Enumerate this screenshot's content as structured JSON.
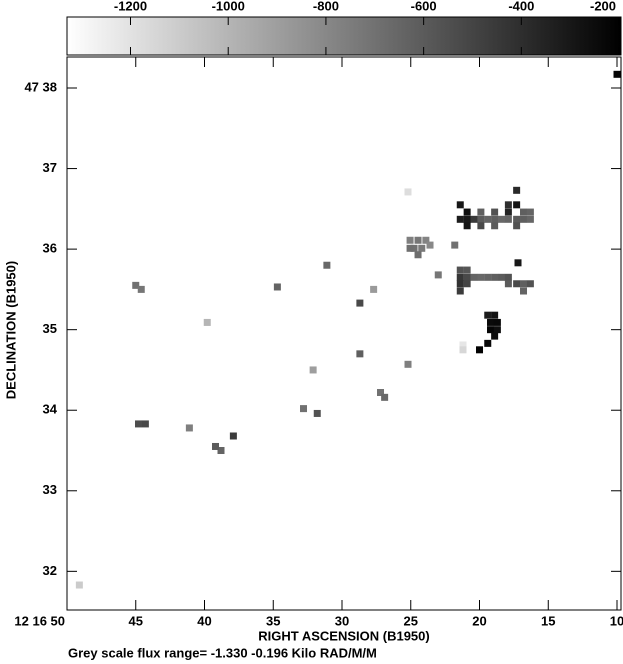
{
  "chart_data": {
    "type": "heatmap",
    "xlabel": "RIGHT ASCENSION (B1950)",
    "ylabel": "DECLINATION (B1950)",
    "caption": "Grey scale flux range= -1.330 -0.196 Kilo RAD/M/M",
    "xlim": [
      50,
      9.71
    ],
    "ylim": [
      31.52,
      38.385
    ],
    "xticks": [
      {
        "value": 50,
        "label": "12 16 50"
      },
      45,
      40,
      35,
      30,
      25,
      20,
      15,
      10
    ],
    "yticks": [
      32,
      33,
      34,
      35,
      36,
      37,
      {
        "value": 38,
        "label": "47 38"
      }
    ],
    "clim": [
      -1330,
      -196
    ],
    "cticks": [
      -1200,
      -1000,
      -800,
      -600,
      -400,
      -200
    ],
    "colormap": [
      "#ffffff",
      "#000000"
    ],
    "x": [
      10.0,
      25.2,
      25.05,
      24.47,
      23.9,
      24.76,
      24.2,
      23.6,
      25.05,
      24.47,
      21.4,
      20.9,
      21.4,
      20.9,
      20.4,
      19.9,
      19.4,
      18.9,
      18.4,
      17.9,
      17.3,
      16.8,
      16.3,
      19.9,
      18.9,
      17.9,
      17.3,
      17.9,
      17.3,
      16.8,
      20.9,
      19.9,
      18.9,
      17.3,
      16.3,
      21.8,
      23.0,
      17.2,
      21.4,
      20.9,
      21.4,
      20.9,
      20.4,
      19.9,
      19.4,
      18.9,
      18.4,
      17.9,
      17.3,
      16.8,
      16.3,
      21.4,
      20.9,
      17.9,
      16.8,
      21.4,
      19.4,
      18.9,
      19.2,
      18.7,
      19.2,
      18.7,
      18.9,
      19.4,
      20.0,
      21.2,
      21.2,
      45.0,
      44.6,
      39.8,
      41.1,
      44.3,
      44.8,
      38.8,
      39.2,
      37.9,
      34.7,
      31.1,
      28.7,
      27.7,
      28.7,
      32.1,
      32.8,
      31.8,
      27.2,
      26.9,
      25.2,
      49.1
    ],
    "y": [
      38.17,
      36.71,
      36.11,
      36.11,
      36.11,
      36.01,
      36.01,
      36.05,
      36.01,
      35.93,
      36.55,
      36.46,
      36.37,
      36.37,
      36.37,
      36.37,
      36.37,
      36.37,
      36.37,
      36.37,
      36.37,
      36.37,
      36.37,
      36.46,
      36.46,
      36.46,
      36.55,
      36.55,
      36.73,
      36.46,
      36.29,
      36.29,
      36.29,
      36.29,
      36.46,
      36.05,
      35.68,
      35.83,
      35.74,
      35.74,
      35.65,
      35.65,
      35.65,
      35.65,
      35.65,
      35.65,
      35.65,
      35.65,
      35.57,
      35.57,
      35.57,
      35.57,
      35.57,
      35.57,
      35.48,
      35.48,
      35.18,
      35.18,
      35.09,
      35.09,
      35.0,
      35.0,
      34.92,
      34.83,
      34.75,
      34.81,
      34.75,
      35.55,
      35.5,
      35.09,
      33.78,
      33.83,
      33.83,
      33.5,
      33.55,
      33.68,
      35.53,
      35.8,
      35.33,
      35.5,
      34.7,
      34.5,
      34.02,
      33.96,
      34.22,
      34.16,
      34.57,
      31.83
    ],
    "values": [
      -220,
      -1180,
      -760,
      -720,
      -780,
      -700,
      -740,
      -800,
      -690,
      -680,
      -300,
      -260,
      -320,
      -300,
      -450,
      -600,
      -640,
      -620,
      -660,
      -640,
      -600,
      -620,
      -650,
      -620,
      -560,
      -350,
      -280,
      -400,
      -380,
      -620,
      -280,
      -520,
      -600,
      -560,
      -640,
      -700,
      -720,
      -300,
      -560,
      -580,
      -440,
      -520,
      -640,
      -660,
      -640,
      -620,
      -600,
      -560,
      -520,
      -620,
      -560,
      -420,
      -500,
      -600,
      -640,
      -460,
      -320,
      -280,
      -240,
      -230,
      -220,
      -260,
      -250,
      -230,
      -200,
      -1220,
      -1150,
      -700,
      -720,
      -1000,
      -760,
      -520,
      -540,
      -640,
      -600,
      -460,
      -640,
      -660,
      -520,
      -880,
      -620,
      -900,
      -700,
      -560,
      -700,
      -660,
      -760,
      -1100
    ]
  }
}
